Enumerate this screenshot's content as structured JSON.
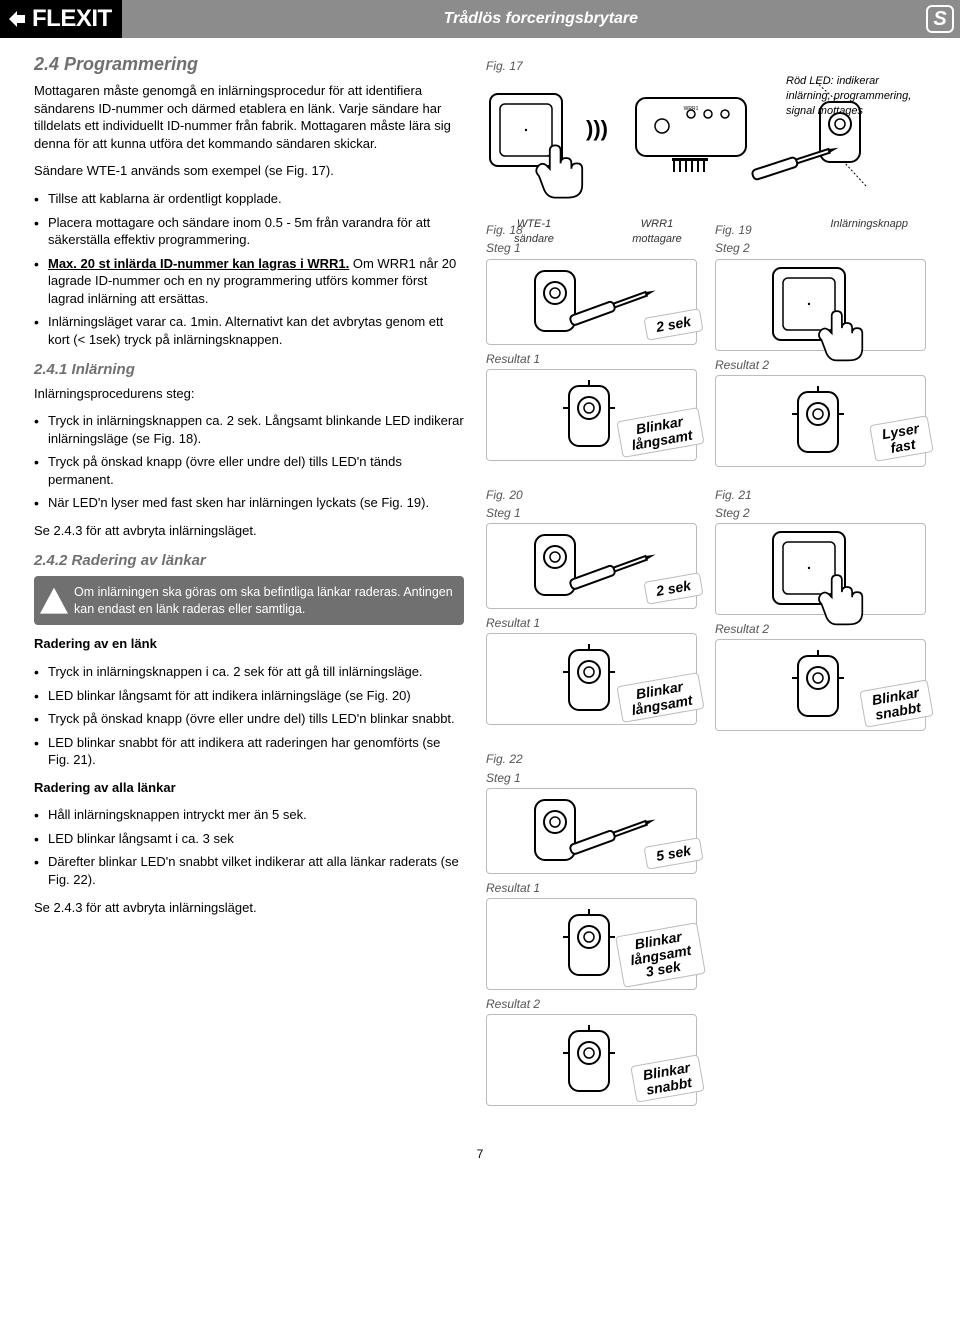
{
  "header": {
    "brand": "FLEXIT",
    "title": "Trådlös forceringsbrytare",
    "lang": "S"
  },
  "left": {
    "h2": "2.4 Programmering",
    "intro": "Mottagaren måste genomgå en inlärningsprocedur för att identifiera sändarens ID-nummer och därmed etablera en länk. Varje sändare har tilldelats ett individuellt ID-nummer från fabrik. Mottagaren måste lära sig denna för att kunna utföra det kommando sändaren skickar.",
    "example": "Sändare WTE-1 används som exempel (se Fig. 17).",
    "bullets1": [
      "Tillse att kablarna är ordentligt kopplade.",
      "Placera mottagare och sändare inom 0.5 - 5m från varandra för att säkerställa effektiv programmering.",
      "<b><u>Max. 20 st inlärda ID-nummer kan lagras i WRR1.</u></b> Om WRR1 når 20 lagrade ID-nummer och en ny programmering utförs kommer först lagrad inlärning att ersättas.",
      "Inlärningsläget varar ca. 1min. Alternativt kan det avbrytas genom ett kort (< 1sek) tryck på inlärningsknappen."
    ],
    "h3a": "2.4.1 Inlärning",
    "procintro": "Inlärningsprocedurens steg:",
    "bullets2": [
      "Tryck in inlärningsknappen ca. 2 sek. Långsamt blinkande LED indikerar inlärningsläge (se Fig. 18).",
      "Tryck på önskad knapp (övre eller undre del) tills LED'n tänds permanent.",
      "När LED'n lyser med fast sken har inlärningen lyckats (se Fig. 19)."
    ],
    "abort1": "Se 2.4.3 för att avbryta inlärningsläget.",
    "h3b": "2.4.2 Radering av länkar",
    "note": "Om inlärningen ska göras om ska befintliga länkar raderas. Antingen kan endast en länk raderas eller samtliga.",
    "h4a": "Radering av en länk",
    "bullets3": [
      "Tryck in inlärningsknappen i ca. 2 sek för att gå till inlärningsläge.",
      "LED blinkar långsamt för att indikera inlärningsläge (se Fig. 20)",
      "Tryck på önskad knapp (övre eller undre del) tills LED'n blinkar snabbt.",
      "LED blinkar snabbt för att indikera att raderingen har genomförts (se Fig. 21)."
    ],
    "h4b": "Radering av alla länkar",
    "bullets4": [
      "Håll inlärningsknappen intryckt mer än 5 sek.",
      "LED blinkar långsamt i ca. 3 sek",
      "Därefter blinkar LED'n snabbt vilket indikerar att alla länkar raderats (se Fig. 22)."
    ],
    "abort2": "Se 2.4.3 för att avbryta inlärningsläget."
  },
  "right": {
    "fig17": "Fig. 17",
    "lednote": "Röd LED: indikerar inlärning, programmering, signal mottages",
    "cap_wte": "WTE-1\nsändare",
    "cap_wrr": "WRR1\nmottagare",
    "cap_btn": "Inlärningsknapp",
    "fig18": "Fig. 18",
    "fig19": "Fig. 19",
    "fig20": "Fig. 20",
    "fig21": "Fig. 21",
    "fig22": "Fig. 22",
    "step1": "Steg 1",
    "step2": "Steg 2",
    "res1": "Resultat 1",
    "res2": "Resultat 2",
    "b_2sek": "2 sek",
    "b_blink_slow": "Blinkar\nlångsamt",
    "b_lyser": "Lyser\nfast",
    "b_blink_fast": "Blinkar\nsnabbt",
    "b_5sek": "5 sek",
    "b_blink_slow3": "Blinkar\nlångsamt\n3 sek"
  },
  "pagenum": "7",
  "colors": {
    "stripe": "#8c8c8c",
    "heading": "#707070",
    "panel_border": "#bcbcbc"
  }
}
